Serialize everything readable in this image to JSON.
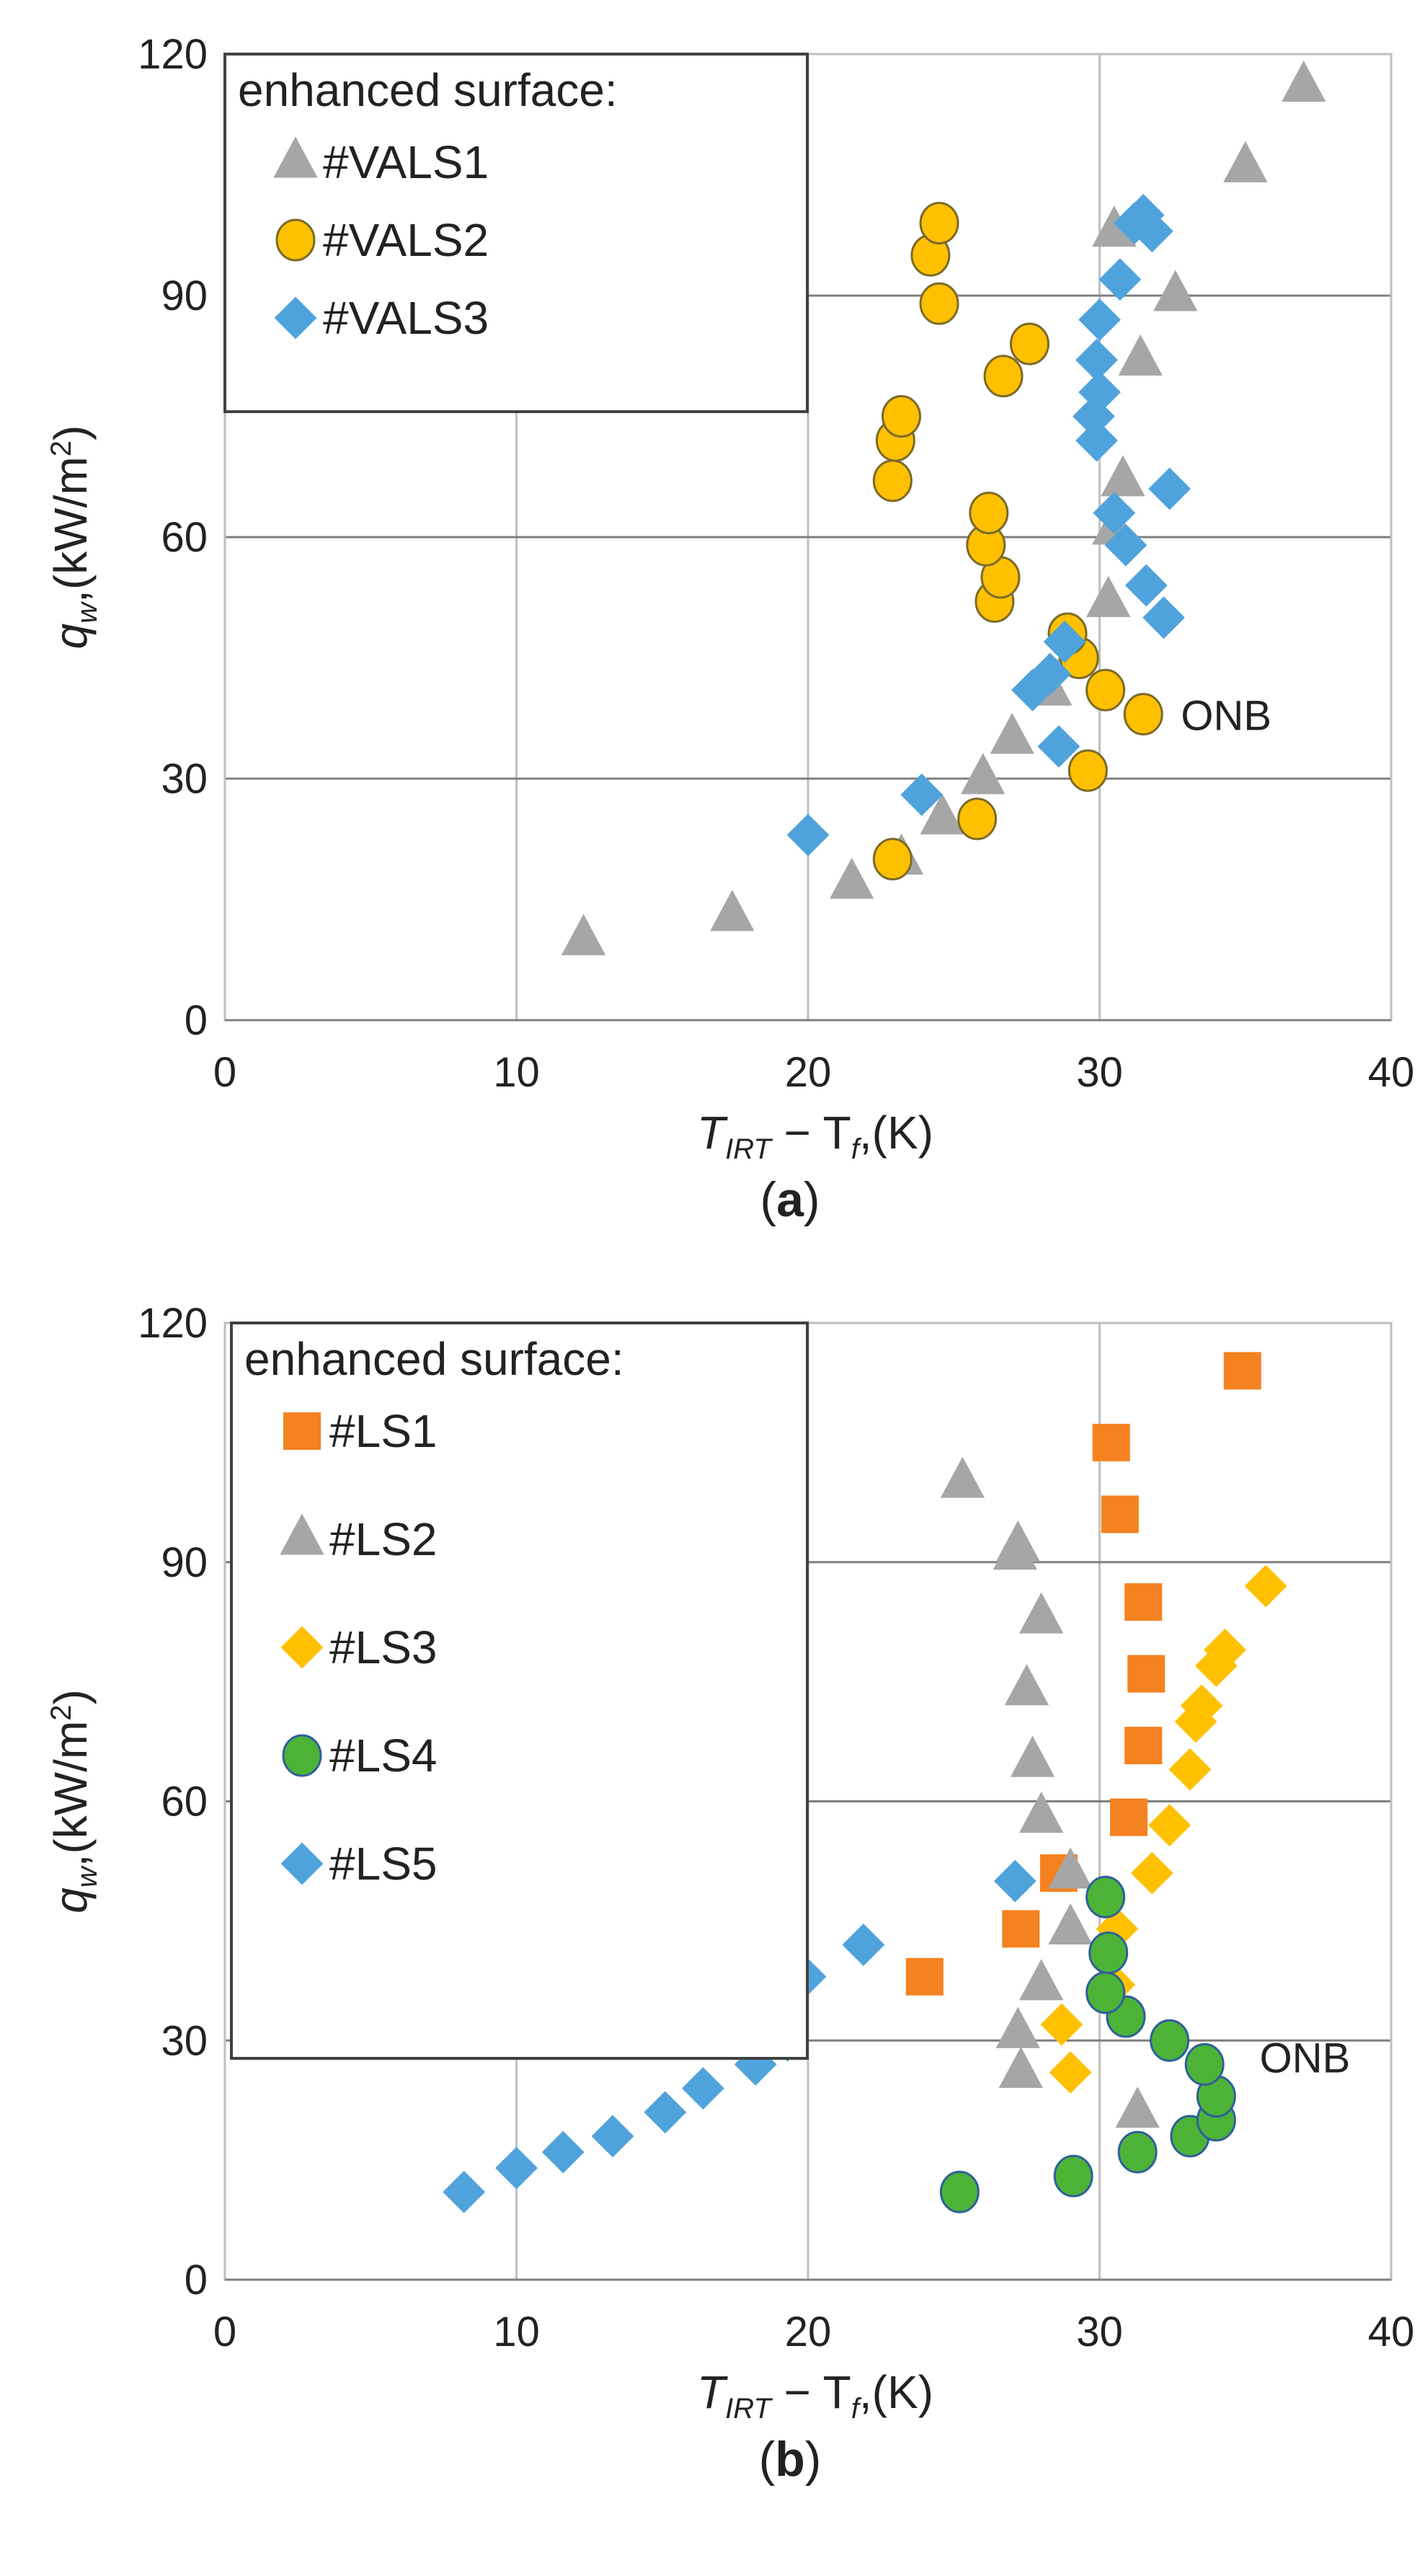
{
  "chart_data": [
    {
      "type": "scatter",
      "panel_label": "a",
      "legend_title": "enhanced surface:",
      "xlabel": {
        "main": "T",
        "sub1": "IRT",
        "mid": " − T",
        "sub2": "f",
        "unit": ",(K)"
      },
      "ylabel": {
        "main": "q",
        "sub": "w",
        "unit": ",(kW/m",
        "sup": "2",
        "close": ")"
      },
      "xlim": [
        0,
        40
      ],
      "ylim": [
        0,
        120
      ],
      "x_ticks": [
        0,
        10,
        20,
        30,
        40
      ],
      "y_ticks": [
        0,
        30,
        60,
        90,
        120
      ],
      "grid": true,
      "legend_position": "top-left",
      "annotation": {
        "text": "ONB",
        "x": 31.8,
        "y": 38
      },
      "series": [
        {
          "name": "#VALS1",
          "marker": "triangle",
          "color": "#a6a6a6",
          "x": [
            12.3,
            17.4,
            21.5,
            23.2,
            24.6,
            26.0,
            27.0,
            28.3,
            29.2,
            30.3,
            30.5,
            30.8,
            31.4,
            30.5,
            32.6,
            35.0,
            37.0
          ],
          "y": [
            10,
            13,
            17,
            20,
            25,
            30,
            35,
            41,
            46,
            52,
            61,
            67,
            82,
            98,
            90,
            106,
            116
          ]
        },
        {
          "name": "#VALS2",
          "marker": "circle",
          "color": "#ffc000",
          "x": [
            22.9,
            25.8,
            29.6,
            30.2,
            29.3,
            28.9,
            31.5,
            26.4,
            26.6,
            26.1,
            26.2,
            22.9,
            23.0,
            23.2,
            26.7,
            27.6,
            24.5,
            24.2,
            24.5
          ],
          "y": [
            20,
            25,
            31,
            41,
            45,
            48,
            38,
            52,
            55,
            59,
            63,
            67,
            72,
            75,
            80,
            84,
            89,
            95,
            99
          ]
        },
        {
          "name": "#VALS3",
          "marker": "diamond",
          "color": "#4fa3dc",
          "x": [
            20.0,
            23.9,
            28.6,
            27.7,
            28.3,
            28.8,
            32.2,
            31.6,
            30.9,
            30.5,
            32.4,
            29.9,
            29.8,
            30.0,
            29.9,
            30.0,
            30.7,
            31.2,
            31.5,
            31.8
          ],
          "y": [
            23,
            28,
            34,
            41,
            43,
            47,
            50,
            54,
            59,
            63,
            66,
            72,
            75,
            78,
            82,
            87,
            92,
            99,
            100,
            98
          ]
        }
      ]
    },
    {
      "type": "scatter",
      "panel_label": "b",
      "legend_title": "enhanced surface:",
      "xlabel": {
        "main": "T",
        "sub1": "IRT",
        "mid": " − T",
        "sub2": "f",
        "unit": ",(K)"
      },
      "ylabel": {
        "main": "q",
        "sub": "w",
        "unit": ",(kW/m",
        "sup": "2",
        "close": ")"
      },
      "xlim": [
        0,
        40
      ],
      "ylim": [
        0,
        120
      ],
      "x_ticks": [
        0,
        10,
        20,
        30,
        40
      ],
      "y_ticks": [
        0,
        30,
        60,
        90,
        120
      ],
      "grid": true,
      "legend_position": "top-left",
      "annotation": {
        "text": "ONB",
        "x": 34.5,
        "y": 28
      },
      "series": [
        {
          "name": "#LS1",
          "marker": "square",
          "color": "#f58220",
          "x": [
            24.0,
            27.3,
            28.6,
            31.0,
            31.5,
            31.6,
            31.5,
            30.7,
            30.4,
            34.9
          ],
          "y": [
            38,
            44,
            51,
            58,
            67,
            76,
            85,
            96,
            105,
            114
          ]
        },
        {
          "name": "#LS2",
          "marker": "triangle",
          "color": "#a6a6a6",
          "x": [
            27.3,
            27.2,
            28.0,
            29.0,
            29.0,
            28.0,
            27.7,
            27.5,
            27.1,
            28.0,
            27.2,
            25.3,
            31.3
          ],
          "y": [
            26,
            31,
            37,
            44,
            51,
            58,
            65,
            74,
            91,
            83,
            92,
            100,
            21
          ]
        },
        {
          "name": "#LS3",
          "marker": "diamond",
          "color": "#ffc000",
          "x": [
            29.0,
            28.7,
            30.5,
            30.6,
            31.8,
            32.4,
            33.1,
            33.3,
            33.5,
            34.0,
            34.3,
            35.7
          ],
          "y": [
            26,
            32,
            37,
            44,
            51,
            57,
            64,
            70,
            72,
            77,
            79,
            87
          ]
        },
        {
          "name": "#LS4",
          "marker": "circle",
          "color": "#4db336",
          "x": [
            25.2,
            29.1,
            31.3,
            33.1,
            34.0,
            34.0,
            33.6,
            32.4,
            30.9,
            30.2,
            30.3,
            30.2
          ],
          "y": [
            11,
            13,
            16,
            18,
            20,
            23,
            27,
            30,
            33,
            36,
            41,
            48
          ]
        },
        {
          "name": "#LS5",
          "marker": "diamond",
          "color": "#4fa3dc",
          "x": [
            8.2,
            10.0,
            11.6,
            13.3,
            15.1,
            16.4,
            18.2,
            19.3,
            18.7,
            19.9,
            21.9,
            27.1
          ],
          "y": [
            11,
            14,
            16,
            18,
            21,
            24,
            27,
            30,
            34,
            38,
            42,
            50
          ]
        }
      ]
    }
  ]
}
